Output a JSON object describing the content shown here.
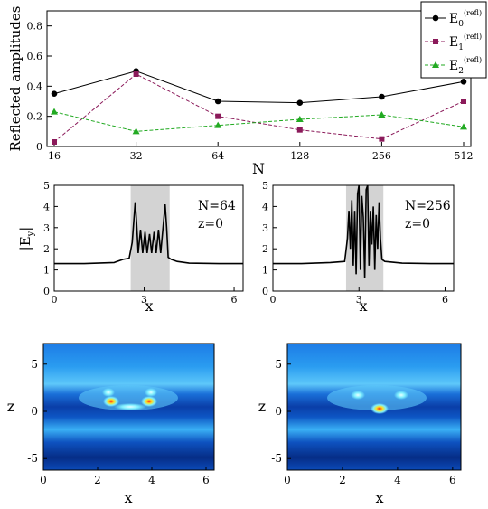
{
  "chart_data": [
    {
      "type": "line",
      "ylabel": "Reflected amplitudes",
      "xlabel": "N",
      "categories": [
        "16",
        "32",
        "64",
        "128",
        "256",
        "512"
      ],
      "ylim": [
        0,
        0.9
      ],
      "yticks": [
        "0",
        "0.2",
        "0.4",
        "0.6",
        "0.8"
      ],
      "legend_position": "top-right",
      "series": [
        {
          "name": "E",
          "sub": "0",
          "sup": "(refl)",
          "color": "#000000",
          "marker": "circle",
          "dash": "solid",
          "values": [
            0.35,
            0.5,
            0.3,
            0.29,
            0.33,
            0.43
          ]
        },
        {
          "name": "E",
          "sub": "1",
          "sup": "(refl)",
          "color": "#8b1a5a",
          "marker": "square",
          "dash": "dashed",
          "values": [
            0.03,
            0.48,
            0.2,
            0.11,
            0.05,
            0.3
          ]
        },
        {
          "name": "E",
          "sub": "2",
          "sup": "(refl)",
          "color": "#22aa22",
          "marker": "triangle",
          "dash": "dashed",
          "values": [
            0.23,
            0.1,
            0.14,
            0.18,
            0.21,
            0.13
          ]
        }
      ]
    },
    {
      "type": "line",
      "ylabel": "|E",
      "ylabel_sub": "y",
      "ylabel_end": "|",
      "xlabel": "x",
      "xlim": [
        0,
        6.3
      ],
      "ylim": [
        0,
        5
      ],
      "xticks": [
        "0",
        "3",
        "6"
      ],
      "yticks": [
        "0",
        "1",
        "2",
        "3",
        "4",
        "5"
      ],
      "annotation": [
        "N=64",
        "z=0"
      ],
      "shaded_region": [
        2.55,
        3.85
      ],
      "x": [
        0,
        1.0,
        2.0,
        2.3,
        2.5,
        2.6,
        2.7,
        2.75,
        2.8,
        2.88,
        2.95,
        3.03,
        3.1,
        3.18,
        3.25,
        3.33,
        3.4,
        3.48,
        3.55,
        3.63,
        3.7,
        3.75,
        3.8,
        3.9,
        4.1,
        4.5,
        5.5,
        6.3
      ],
      "y": [
        1.3,
        1.3,
        1.35,
        1.5,
        1.55,
        2.3,
        4.2,
        3.2,
        1.8,
        2.9,
        1.8,
        2.8,
        1.8,
        2.7,
        1.8,
        2.8,
        1.8,
        2.9,
        1.8,
        3.0,
        4.1,
        3.0,
        1.6,
        1.5,
        1.4,
        1.32,
        1.3,
        1.3
      ]
    },
    {
      "type": "line",
      "ylabel": "",
      "xlabel": "x",
      "xlim": [
        0,
        6.3
      ],
      "ylim": [
        0,
        5
      ],
      "xticks": [
        "0",
        "3",
        "6"
      ],
      "yticks": [
        "0",
        "1",
        "2",
        "3",
        "4",
        "5"
      ],
      "annotation": [
        "N=256",
        "z=0"
      ],
      "shaded_region": [
        2.55,
        3.85
      ],
      "x": [
        0,
        1.0,
        2.0,
        2.5,
        2.6,
        2.65,
        2.7,
        2.75,
        2.8,
        2.85,
        2.9,
        2.95,
        3.0,
        3.05,
        3.1,
        3.15,
        3.2,
        3.25,
        3.3,
        3.35,
        3.4,
        3.45,
        3.5,
        3.55,
        3.6,
        3.65,
        3.7,
        3.75,
        3.8,
        3.9,
        4.5,
        5.5,
        6.3
      ],
      "y": [
        1.3,
        1.3,
        1.35,
        1.4,
        2.5,
        3.8,
        2.0,
        4.3,
        1.2,
        3.8,
        0.8,
        4.6,
        5.0,
        1.0,
        4.5,
        3.5,
        0.6,
        4.8,
        5.0,
        1.2,
        3.8,
        2.2,
        4.0,
        1.0,
        3.6,
        2.0,
        4.2,
        2.5,
        1.5,
        1.4,
        1.32,
        1.3,
        1.3
      ]
    },
    {
      "type": "heatmap",
      "ylabel": "z",
      "xlabel": "x",
      "xticks": [
        "0",
        "2",
        "4",
        "6"
      ],
      "yticks": [
        "5",
        "0",
        "-5"
      ]
    },
    {
      "type": "heatmap",
      "ylabel": "z",
      "xlabel": "x",
      "xticks": [
        "0",
        "2",
        "4",
        "6"
      ],
      "yticks": [
        "5",
        "0",
        "-5"
      ]
    }
  ]
}
